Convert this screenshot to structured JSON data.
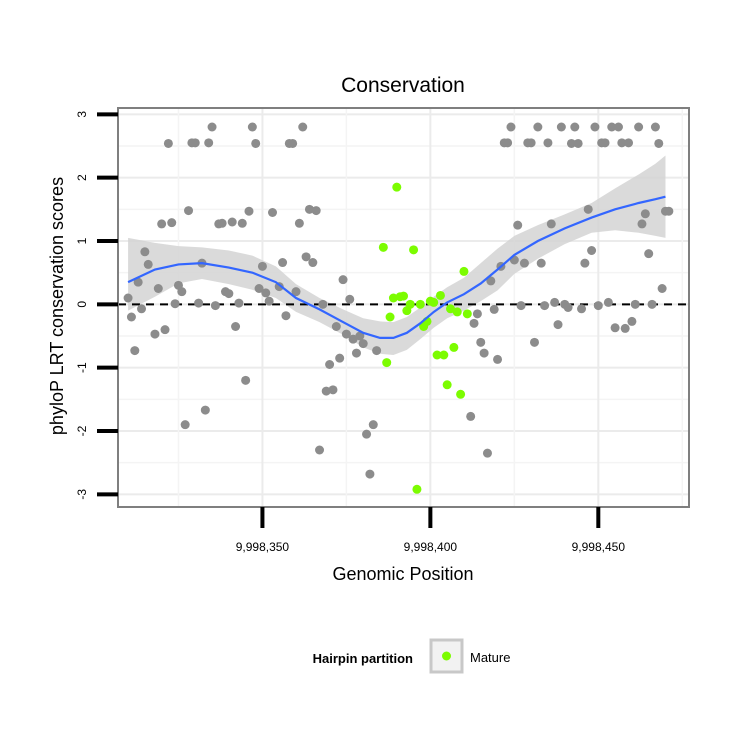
{
  "chart_data": {
    "type": "scatter",
    "title": "Conservation",
    "xlabel": "Genomic Position",
    "ylabel": "phyloP LRT conservation scores",
    "xlim": [
      9998307,
      9998477
    ],
    "ylim": [
      -3.2,
      3.1
    ],
    "x_ticks": [
      {
        "value": 9998350,
        "label": "9,998,350"
      },
      {
        "value": 9998400,
        "label": "9,998,400"
      },
      {
        "value": 9998450,
        "label": "9,998,450"
      }
    ],
    "y_ticks": [
      {
        "value": -3,
        "label": "-3"
      },
      {
        "value": -2,
        "label": "-2"
      },
      {
        "value": -1,
        "label": "-1"
      },
      {
        "value": 0,
        "label": "0"
      },
      {
        "value": 1,
        "label": "1"
      },
      {
        "value": 2,
        "label": "2"
      },
      {
        "value": 3,
        "label": "3"
      }
    ],
    "reference_line": {
      "y": 0,
      "style": "dashed"
    },
    "legend": {
      "title": "Hairpin partition",
      "position": "bottom",
      "entries": [
        {
          "label": "Mature",
          "color": "#7CFC00"
        }
      ]
    },
    "colors": {
      "other": "#8C8C8C",
      "mature": "#7CFC00",
      "smooth": "#3366FF",
      "band": "#D3D3D3"
    },
    "series": [
      {
        "name": "Other",
        "color": "#8C8C8C",
        "points": [
          [
            9998310,
            0.1
          ],
          [
            9998311,
            -0.2
          ],
          [
            9998312,
            -0.73
          ],
          [
            9998313,
            0.35
          ],
          [
            9998314,
            -0.07
          ],
          [
            9998315,
            0.83
          ],
          [
            9998316,
            0.63
          ],
          [
            9998318,
            -0.47
          ],
          [
            9998319,
            0.25
          ],
          [
            9998320,
            1.27
          ],
          [
            9998321,
            -0.4
          ],
          [
            9998322,
            2.54
          ],
          [
            9998323,
            1.29
          ],
          [
            9998324,
            0.01
          ],
          [
            9998325,
            0.3
          ],
          [
            9998326,
            0.2
          ],
          [
            9998327,
            -1.9
          ],
          [
            9998328,
            1.48
          ],
          [
            9998329,
            2.55
          ],
          [
            9998330,
            2.55
          ],
          [
            9998331,
            0.02
          ],
          [
            9998332,
            0.65
          ],
          [
            9998333,
            -1.67
          ],
          [
            9998334,
            2.55
          ],
          [
            9998335,
            2.8
          ],
          [
            9998336,
            -0.02
          ],
          [
            9998337,
            1.27
          ],
          [
            9998338,
            1.28
          ],
          [
            9998339,
            0.2
          ],
          [
            9998340,
            0.17
          ],
          [
            9998341,
            1.3
          ],
          [
            9998342,
            -0.35
          ],
          [
            9998343,
            0.02
          ],
          [
            9998344,
            1.28
          ],
          [
            9998345,
            -1.2
          ],
          [
            9998346,
            1.47
          ],
          [
            9998347,
            2.8
          ],
          [
            9998348,
            2.54
          ],
          [
            9998349,
            0.25
          ],
          [
            9998350,
            0.6
          ],
          [
            9998351,
            0.18
          ],
          [
            9998352,
            0.05
          ],
          [
            9998353,
            1.45
          ],
          [
            9998355,
            0.28
          ],
          [
            9998356,
            0.66
          ],
          [
            9998357,
            -0.18
          ],
          [
            9998358,
            2.54
          ],
          [
            9998359,
            2.54
          ],
          [
            9998360,
            0.2
          ],
          [
            9998361,
            1.28
          ],
          [
            9998362,
            2.8
          ],
          [
            9998363,
            0.75
          ],
          [
            9998364,
            1.5
          ],
          [
            9998365,
            0.66
          ],
          [
            9998366,
            1.48
          ],
          [
            9998367,
            -2.3
          ],
          [
            9998368,
            0.0
          ],
          [
            9998369,
            -1.37
          ],
          [
            9998370,
            -0.95
          ],
          [
            9998371,
            -1.35
          ],
          [
            9998372,
            -0.35
          ],
          [
            9998373,
            -0.85
          ],
          [
            9998374,
            0.39
          ],
          [
            9998375,
            -0.47
          ],
          [
            9998376,
            0.08
          ],
          [
            9998377,
            -0.55
          ],
          [
            9998378,
            -0.77
          ],
          [
            9998379,
            -0.5
          ],
          [
            9998380,
            -0.62
          ],
          [
            9998381,
            -2.05
          ],
          [
            9998382,
            -2.68
          ],
          [
            9998383,
            -1.9
          ],
          [
            9998384,
            -0.73
          ]
        ]
      },
      {
        "name": "Mature",
        "color": "#7CFC00",
        "points": [
          [
            9998386,
            0.9
          ],
          [
            9998387,
            -0.92
          ],
          [
            9998388,
            -0.2
          ],
          [
            9998389,
            0.1
          ],
          [
            9998390,
            1.85
          ],
          [
            9998391,
            0.12
          ],
          [
            9998392,
            0.13
          ],
          [
            9998393,
            -0.1
          ],
          [
            9998394,
            0.0
          ],
          [
            9998395,
            0.86
          ],
          [
            9998396,
            -2.92
          ],
          [
            9998397,
            0.0
          ],
          [
            9998398,
            -0.35
          ],
          [
            9998399,
            -0.27
          ],
          [
            9998400,
            0.05
          ],
          [
            9998401,
            0.03
          ],
          [
            9998402,
            -0.8
          ],
          [
            9998403,
            0.14
          ],
          [
            9998404,
            -0.8
          ],
          [
            9998405,
            -1.27
          ],
          [
            9998406,
            -0.07
          ],
          [
            9998407,
            -0.68
          ],
          [
            9998408,
            -0.12
          ],
          [
            9998409,
            -1.42
          ],
          [
            9998410,
            0.52
          ],
          [
            9998411,
            -0.15
          ]
        ]
      },
      {
        "name": "Other",
        "color": "#8C8C8C",
        "points": [
          [
            9998412,
            -1.77
          ],
          [
            9998413,
            -0.3
          ],
          [
            9998414,
            -0.15
          ],
          [
            9998415,
            -0.6
          ],
          [
            9998416,
            -0.77
          ],
          [
            9998417,
            -2.35
          ],
          [
            9998418,
            0.37
          ],
          [
            9998419,
            -0.08
          ],
          [
            9998420,
            -0.87
          ],
          [
            9998421,
            0.6
          ],
          [
            9998422,
            2.55
          ],
          [
            9998423,
            2.55
          ],
          [
            9998424,
            2.8
          ],
          [
            9998425,
            0.7
          ],
          [
            9998426,
            1.25
          ],
          [
            9998427,
            -0.02
          ],
          [
            9998428,
            0.65
          ],
          [
            9998429,
            2.55
          ],
          [
            9998430,
            2.55
          ],
          [
            9998431,
            -0.6
          ],
          [
            9998432,
            2.8
          ],
          [
            9998433,
            0.65
          ],
          [
            9998434,
            -0.02
          ],
          [
            9998435,
            2.55
          ],
          [
            9998436,
            1.27
          ],
          [
            9998437,
            0.03
          ],
          [
            9998438,
            -0.32
          ],
          [
            9998439,
            2.8
          ],
          [
            9998440,
            0.0
          ],
          [
            9998441,
            -0.05
          ],
          [
            9998442,
            2.54
          ],
          [
            9998443,
            2.8
          ],
          [
            9998444,
            2.54
          ],
          [
            9998445,
            -0.07
          ],
          [
            9998446,
            0.65
          ],
          [
            9998447,
            1.5
          ],
          [
            9998448,
            0.85
          ],
          [
            9998449,
            2.8
          ],
          [
            9998450,
            -0.02
          ],
          [
            9998451,
            2.55
          ],
          [
            9998452,
            2.55
          ],
          [
            9998453,
            0.03
          ],
          [
            9998454,
            2.8
          ],
          [
            9998455,
            -0.37
          ],
          [
            9998456,
            2.8
          ],
          [
            9998457,
            2.55
          ],
          [
            9998458,
            -0.38
          ],
          [
            9998459,
            2.55
          ],
          [
            9998460,
            -0.27
          ],
          [
            9998461,
            0.0
          ],
          [
            9998462,
            2.8
          ],
          [
            9998463,
            1.27
          ],
          [
            9998464,
            1.43
          ],
          [
            9998465,
            0.8
          ],
          [
            9998466,
            0.0
          ],
          [
            9998467,
            2.8
          ],
          [
            9998468,
            2.54
          ],
          [
            9998469,
            0.25
          ],
          [
            9998470,
            1.47
          ],
          [
            9998471,
            1.47
          ]
        ]
      }
    ],
    "smooth": {
      "method": "loess",
      "line": [
        [
          9998310,
          0.35
        ],
        [
          9998318,
          0.55
        ],
        [
          9998325,
          0.63
        ],
        [
          9998332,
          0.65
        ],
        [
          9998340,
          0.58
        ],
        [
          9998347,
          0.5
        ],
        [
          9998354,
          0.35
        ],
        [
          9998360,
          0.1
        ],
        [
          9998367,
          -0.08
        ],
        [
          9998374,
          -0.28
        ],
        [
          9998380,
          -0.45
        ],
        [
          9998385,
          -0.53
        ],
        [
          9998389,
          -0.53
        ],
        [
          9998393,
          -0.45
        ],
        [
          9998397,
          -0.3
        ],
        [
          9998401,
          -0.12
        ],
        [
          9998405,
          0.03
        ],
        [
          9998410,
          0.16
        ],
        [
          9998415,
          0.33
        ],
        [
          9998420,
          0.55
        ],
        [
          9998425,
          0.78
        ],
        [
          9998432,
          1.0
        ],
        [
          9998440,
          1.2
        ],
        [
          9998448,
          1.37
        ],
        [
          9998455,
          1.5
        ],
        [
          9998462,
          1.6
        ],
        [
          9998467,
          1.66
        ],
        [
          9998470,
          1.7
        ]
      ],
      "band_upper": [
        [
          9998310,
          1.05
        ],
        [
          9998318,
          0.97
        ],
        [
          9998325,
          0.92
        ],
        [
          9998332,
          0.9
        ],
        [
          9998340,
          0.85
        ],
        [
          9998347,
          0.77
        ],
        [
          9998354,
          0.6
        ],
        [
          9998360,
          0.32
        ],
        [
          9998367,
          0.1
        ],
        [
          9998374,
          -0.08
        ],
        [
          9998380,
          -0.22
        ],
        [
          9998385,
          -0.27
        ],
        [
          9998389,
          -0.28
        ],
        [
          9998393,
          -0.2
        ],
        [
          9998397,
          -0.05
        ],
        [
          9998401,
          0.12
        ],
        [
          9998405,
          0.27
        ],
        [
          9998410,
          0.42
        ],
        [
          9998415,
          0.65
        ],
        [
          9998420,
          0.88
        ],
        [
          9998425,
          1.08
        ],
        [
          9998432,
          1.25
        ],
        [
          9998440,
          1.42
        ],
        [
          9998448,
          1.6
        ],
        [
          9998455,
          1.83
        ],
        [
          9998462,
          2.05
        ],
        [
          9998467,
          2.22
        ],
        [
          9998470,
          2.35
        ]
      ],
      "band_lower": [
        [
          9998310,
          -0.1
        ],
        [
          9998318,
          0.12
        ],
        [
          9998325,
          0.33
        ],
        [
          9998332,
          0.4
        ],
        [
          9998340,
          0.32
        ],
        [
          9998347,
          0.23
        ],
        [
          9998354,
          0.1
        ],
        [
          9998360,
          -0.12
        ],
        [
          9998367,
          -0.28
        ],
        [
          9998374,
          -0.48
        ],
        [
          9998380,
          -0.68
        ],
        [
          9998385,
          -0.78
        ],
        [
          9998389,
          -0.8
        ],
        [
          9998393,
          -0.72
        ],
        [
          9998397,
          -0.55
        ],
        [
          9998401,
          -0.37
        ],
        [
          9998405,
          -0.22
        ],
        [
          9998410,
          -0.1
        ],
        [
          9998415,
          0.05
        ],
        [
          9998420,
          0.22
        ],
        [
          9998425,
          0.48
        ],
        [
          9998432,
          0.72
        ],
        [
          9998440,
          0.95
        ],
        [
          9998448,
          1.13
        ],
        [
          9998455,
          1.17
        ],
        [
          9998462,
          1.13
        ],
        [
          9998467,
          1.08
        ],
        [
          9998470,
          1.05
        ]
      ]
    }
  }
}
